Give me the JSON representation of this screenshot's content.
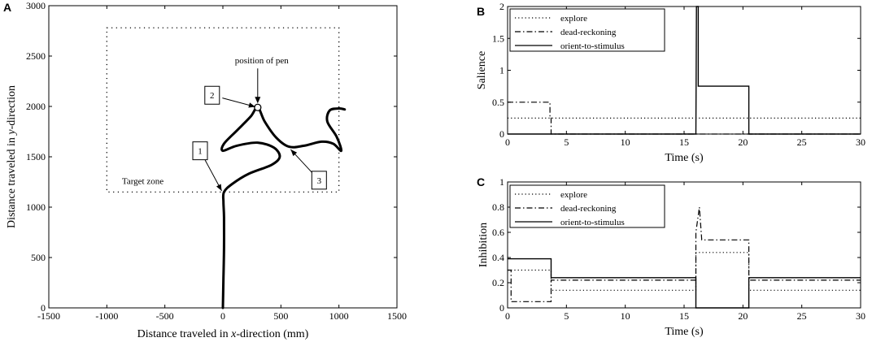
{
  "chart_data": [
    {
      "panel": "A",
      "type": "line",
      "xlabel_parts": [
        "Distance traveled in ",
        "x",
        "-direction (mm)"
      ],
      "ylabel_parts": [
        "Distance traveled in ",
        "y",
        "-direction"
      ],
      "xlim": [
        -1500,
        1500
      ],
      "ylim": [
        0,
        3000
      ],
      "xticks": [
        -1500,
        -1000,
        -500,
        0,
        500,
        1000,
        1500
      ],
      "yticks": [
        0,
        500,
        1000,
        1500,
        2000,
        2500,
        3000
      ],
      "target_zone": {
        "label": "Target zone",
        "x": [
          -1000,
          1000
        ],
        "y": [
          1150,
          2780
        ]
      },
      "pen": {
        "label": "position of pen",
        "x": 300,
        "y": 1990
      },
      "markers": [
        {
          "label": "1",
          "at": [
            0,
            1140
          ]
        },
        {
          "label": "2",
          "at": [
            300,
            1990
          ]
        },
        {
          "label": "3",
          "at": [
            570,
            1590
          ]
        }
      ],
      "path": [
        [
          0,
          0
        ],
        [
          5,
          300
        ],
        [
          10,
          600
        ],
        [
          10,
          900
        ],
        [
          5,
          1050
        ],
        [
          10,
          1150
        ],
        [
          80,
          1230
        ],
        [
          220,
          1330
        ],
        [
          420,
          1420
        ],
        [
          490,
          1500
        ],
        [
          440,
          1590
        ],
        [
          300,
          1640
        ],
        [
          120,
          1610
        ],
        [
          0,
          1560
        ],
        [
          10,
          1630
        ],
        [
          120,
          1760
        ],
        [
          240,
          1900
        ],
        [
          300,
          1990
        ],
        [
          360,
          1850
        ],
        [
          460,
          1690
        ],
        [
          570,
          1600
        ],
        [
          700,
          1610
        ],
        [
          850,
          1650
        ],
        [
          950,
          1630
        ],
        [
          1020,
          1560
        ],
        [
          980,
          1700
        ],
        [
          900,
          1850
        ],
        [
          920,
          1960
        ],
        [
          1000,
          1980
        ],
        [
          1050,
          1970
        ]
      ]
    },
    {
      "panel": "B",
      "type": "line",
      "xlabel": "Time (s)",
      "ylabel": "Salience",
      "xlim": [
        0,
        30
      ],
      "ylim": [
        0,
        2
      ],
      "xticks": [
        0,
        5,
        10,
        15,
        20,
        25,
        30
      ],
      "yticks": [
        0,
        0.5,
        1,
        1.5,
        2
      ],
      "legend_position": "top-left",
      "series": [
        {
          "name": "explore",
          "style": "dotted",
          "x": [
            0,
            30
          ],
          "y": [
            0.25,
            0.25
          ]
        },
        {
          "name": "dead-reckoning",
          "style": "dashdot",
          "x": [
            0,
            3.6,
            3.6,
            3.7,
            3.7,
            30
          ],
          "y": [
            0.5,
            0.5,
            0.25,
            0.25,
            0,
            0
          ]
        },
        {
          "name": "orient-to-stimulus",
          "style": "solid",
          "x": [
            0,
            16,
            16.05,
            16.2,
            16.2,
            20.5,
            20.5,
            30
          ],
          "y": [
            0,
            0,
            2,
            2,
            0.75,
            0.75,
            0,
            0
          ]
        }
      ]
    },
    {
      "panel": "C",
      "type": "line",
      "xlabel": "Time (s)",
      "ylabel": "Inhibition",
      "xlim": [
        0,
        30
      ],
      "ylim": [
        0,
        1
      ],
      "xticks": [
        0,
        5,
        10,
        15,
        20,
        25,
        30
      ],
      "yticks": [
        0,
        0.2,
        0.4,
        0.6,
        0.8,
        1
      ],
      "legend_position": "top-left",
      "series": [
        {
          "name": "explore",
          "style": "dotted",
          "x": [
            0,
            3.7,
            3.7,
            16,
            16,
            20.5,
            20.5,
            30
          ],
          "y": [
            0.3,
            0.3,
            0.14,
            0.14,
            0.44,
            0.44,
            0.14,
            0.14
          ]
        },
        {
          "name": "dead-reckoning",
          "style": "dashdot",
          "x": [
            0,
            0.3,
            0.3,
            3.7,
            3.7,
            16,
            16,
            16.3,
            16.5,
            20.5,
            20.5,
            30
          ],
          "y": [
            0.3,
            0.3,
            0.05,
            0.05,
            0.22,
            0.22,
            0.6,
            0.8,
            0.54,
            0.54,
            0.22,
            0.22
          ]
        },
        {
          "name": "orient-to-stimulus",
          "style": "solid",
          "x": [
            0,
            3.7,
            3.7,
            16,
            16,
            20.5,
            20.5,
            30
          ],
          "y": [
            0.39,
            0.39,
            0.24,
            0.24,
            0,
            0,
            0.24,
            0.24
          ]
        }
      ]
    }
  ]
}
